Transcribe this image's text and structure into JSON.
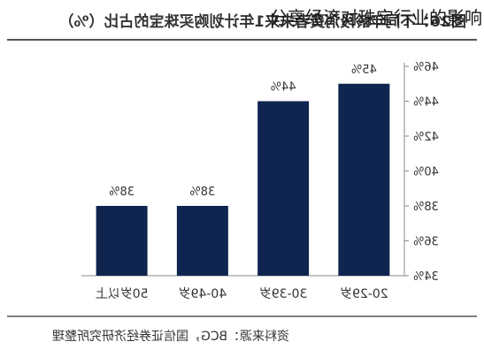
{
  "overlay_title": "分享经济对珠宝行业的影响",
  "figure_title": "图26：不同年龄段消费者未来1年计划购买珠宝的占比（%）",
  "source_note": "资料来源：BCG，国信证券经济研究所整理",
  "colors": {
    "bar": "#0f2550",
    "axis": "#888888",
    "text": "#333333",
    "rule": "#555555"
  },
  "chart_data": {
    "type": "bar",
    "categories": [
      "20-29岁",
      "30-39岁",
      "40-49岁",
      "50岁以上"
    ],
    "values": [
      45,
      44,
      38,
      38
    ],
    "data_labels": [
      "45%",
      "44%",
      "38%",
      "38%"
    ],
    "ylim": [
      34,
      46
    ],
    "yticks": [
      34,
      36,
      38,
      40,
      42,
      44,
      46
    ],
    "ytick_labels": [
      "34%",
      "36%",
      "38%",
      "40%",
      "42%",
      "44%",
      "46%"
    ],
    "xlabel": "",
    "ylabel": "",
    "grid": false,
    "legend": "none"
  }
}
